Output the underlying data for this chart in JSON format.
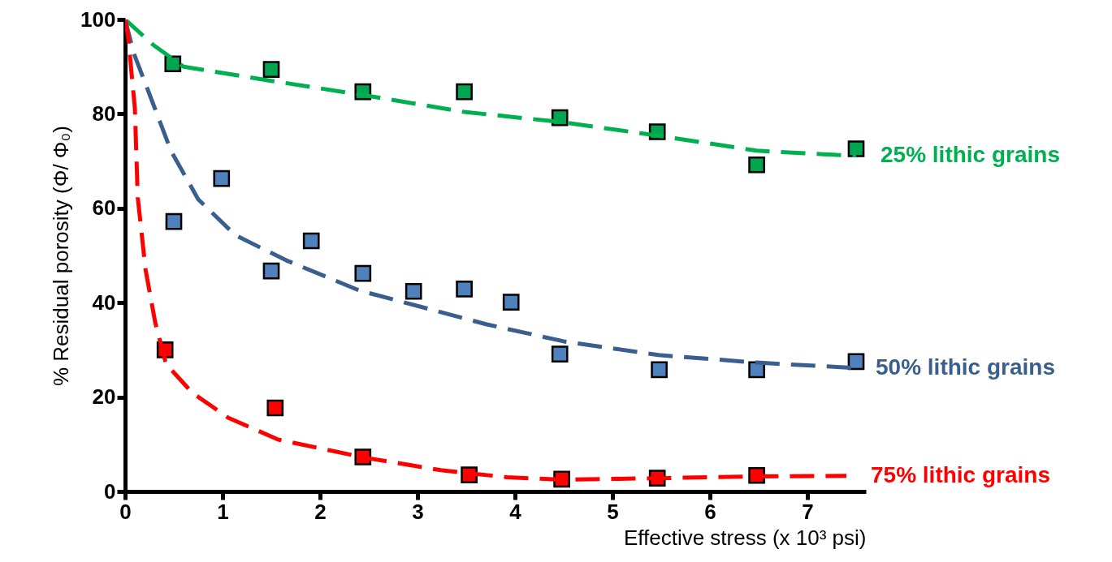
{
  "chart_data": {
    "type": "scatter",
    "xlabel": "Effective stress (x 10³ psi)",
    "ylabel": "% Residual porosity (Φ/ Φ₀)",
    "xlim": [
      0,
      7.6
    ],
    "ylim": [
      0,
      100
    ],
    "xticks": [
      0,
      1,
      2,
      3,
      4,
      5,
      6,
      7
    ],
    "yticks": [
      0,
      20,
      40,
      60,
      80,
      100
    ],
    "series": [
      {
        "marker": "square",
        "color": "#00a550",
        "x": [
          0.49,
          1.5,
          2.44,
          3.48,
          4.46,
          5.46,
          6.48,
          7.5
        ],
        "values": [
          90.6,
          89.4,
          84.7,
          84.7,
          79.2,
          76.2,
          69.2,
          72.6
        ]
      },
      {
        "marker": "square",
        "color": "#4f81bd",
        "x": [
          0.5,
          0.99,
          1.5,
          1.91,
          2.44,
          2.96,
          3.48,
          3.96,
          4.46,
          5.48,
          6.48,
          7.5
        ],
        "values": [
          57.2,
          66.3,
          46.7,
          53.1,
          46.2,
          42.4,
          42.9,
          40.1,
          29.1,
          25.8,
          25.8,
          27.5
        ]
      },
      {
        "marker": "square",
        "color": "#ff0000",
        "x": [
          0.41,
          1.54,
          2.44,
          3.53,
          4.48,
          5.46,
          6.48
        ],
        "values": [
          30,
          17.7,
          7.3,
          3.5,
          2.6,
          2.8,
          3.4
        ]
      },
      {
        "type": "line",
        "name": "25% lithic grains",
        "color": "#00b050",
        "line_style": "dashed",
        "marker": "none",
        "x": [
          0,
          0.29,
          0.6,
          1.5,
          2.44,
          3.48,
          4.46,
          5.46,
          6.48,
          7.3,
          7.5
        ],
        "values": [
          100,
          94.6,
          90,
          87,
          84,
          80.4,
          78.3,
          75.4,
          72.2,
          71.3,
          71.2
        ]
      },
      {
        "type": "line",
        "name": "50% lithic grains",
        "color": "#3a5f8f",
        "line_style": "dashed",
        "marker": "none",
        "x": [
          0,
          0.09,
          0.29,
          0.47,
          0.75,
          1.13,
          1.65,
          2.4,
          3.71,
          4.5,
          5.47,
          6.48,
          7.45
        ],
        "values": [
          100,
          92.8,
          82,
          72.2,
          61.9,
          54.3,
          49,
          42.6,
          35.4,
          31.8,
          28.9,
          27.3,
          26.2
        ]
      },
      {
        "type": "line",
        "name": "75% lithic grains",
        "color": "#ff0000",
        "line_style": "dashed",
        "marker": "none",
        "x": [
          0,
          0.03,
          0.1,
          0.13,
          0.21,
          0.31,
          0.42,
          0.69,
          1.06,
          1.57,
          2.45,
          3.24,
          3.92,
          4.48,
          5.46,
          6.48,
          7.4
        ],
        "values": [
          100,
          96.6,
          81.3,
          62.3,
          47,
          35.7,
          27,
          20.9,
          15.6,
          11,
          7.2,
          4.5,
          3,
          2.5,
          2.8,
          3.2,
          3.3
        ]
      }
    ]
  }
}
